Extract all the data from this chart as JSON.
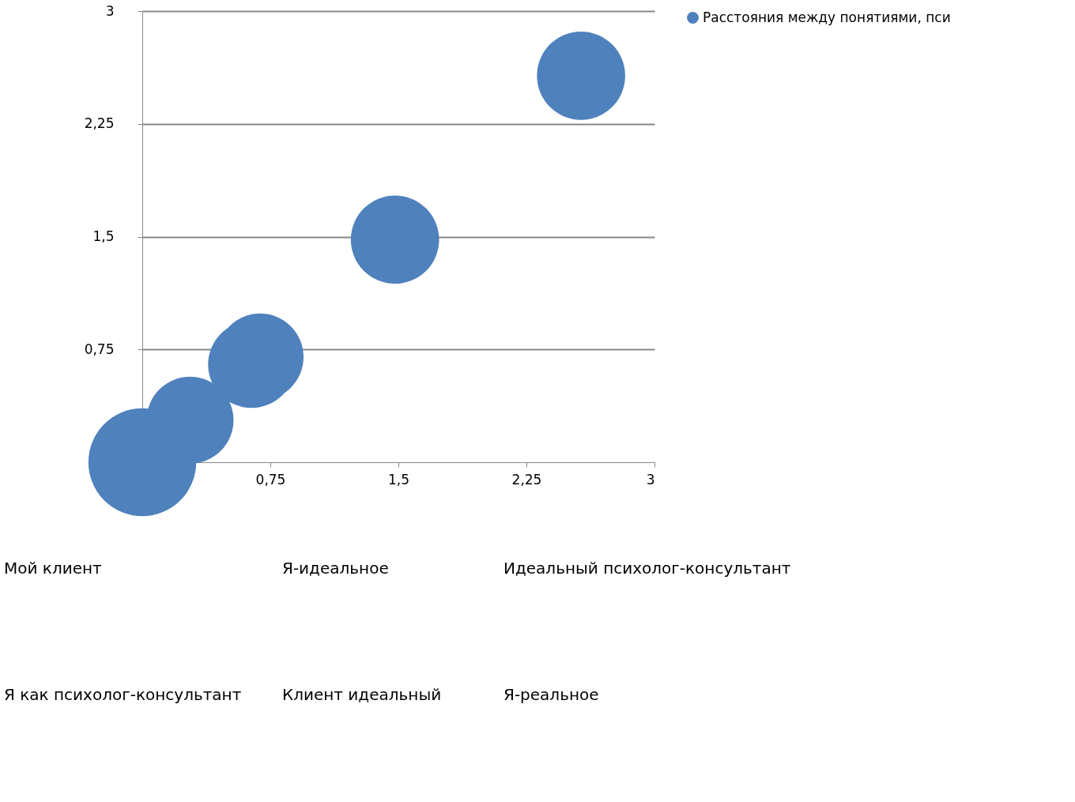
{
  "chart_data": {
    "type": "bubble",
    "x": [
      0,
      0.28,
      0.64,
      0.69,
      1.48,
      2.57
    ],
    "series": [
      {
        "name": "Расстояния между понятиями, пси",
        "color": "#4f81bd",
        "values": [
          0,
          0.28,
          0.65,
          0.7,
          1.48,
          2.57
        ],
        "sizes": [
          1,
          0.65,
          0.65,
          0.65,
          0.67,
          0.67
        ]
      }
    ],
    "xlim": [
      0,
      3
    ],
    "ylim": [
      0,
      3
    ],
    "xticks": [
      {
        "value": 0.75,
        "label": "0,75"
      },
      {
        "value": 1.5,
        "label": "1,5"
      },
      {
        "value": 2.25,
        "label": "2,25"
      },
      3
    ],
    "yticks": [
      {
        "value": 0.75,
        "label": "0,75"
      },
      {
        "value": 1.5,
        "label": "1,5"
      },
      {
        "value": 2.25,
        "label": "2,25"
      },
      3
    ],
    "grid": "y",
    "legend": "right",
    "annotations": [
      "Мой клиент",
      "Я-идеальное",
      "Идеальный психолог-консультант",
      "Я как психолог-консультант",
      "Клиент идеальный",
      "Я-реальное"
    ]
  }
}
